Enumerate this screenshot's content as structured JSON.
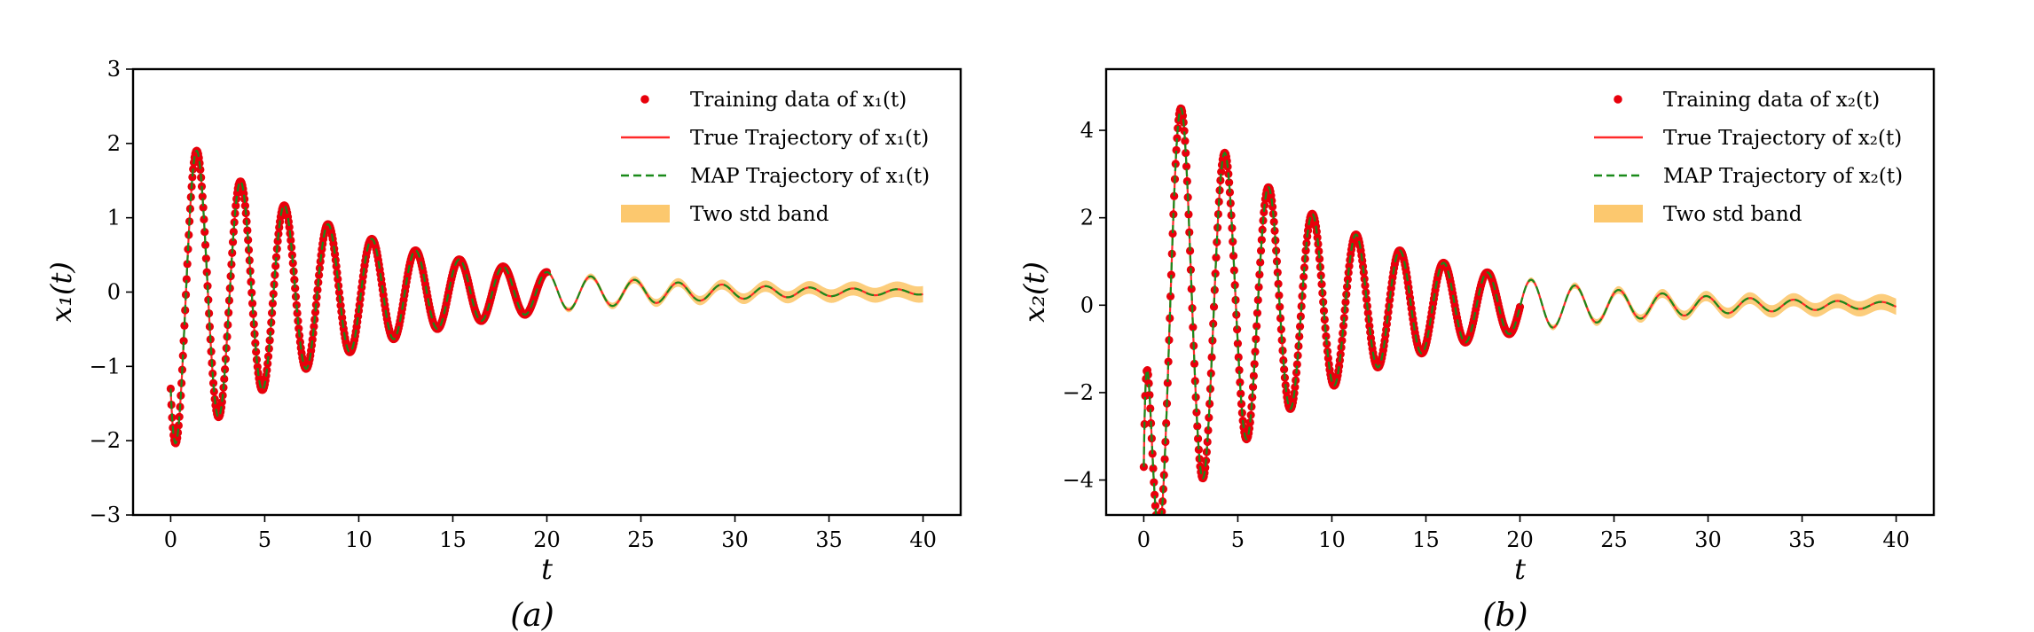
{
  "chart_data": [
    {
      "type": "line",
      "caption": "(a)",
      "xlabel": "t",
      "ylabel": "x₁(t)",
      "xlim": [
        -2,
        42
      ],
      "ylim": [
        -3,
        3
      ],
      "xticks": [
        0,
        5,
        10,
        15,
        20,
        25,
        30,
        35,
        40
      ],
      "yticks": [
        3,
        2,
        1,
        0,
        -1,
        -2,
        -3
      ],
      "ytick_labels": [
        "3",
        "2",
        "1",
        "0",
        "−1",
        "−2",
        "−3"
      ],
      "xtick_labels": [
        "0",
        "5",
        "10",
        "15",
        "20",
        "25",
        "30",
        "35",
        "40"
      ],
      "training_range": [
        0,
        20
      ],
      "signal": {
        "amplitude": 2.2,
        "decay": 0.105,
        "omega": 2.7,
        "phase": 2.2,
        "start": -1.3
      },
      "legend_position": "top-right",
      "legend": [
        "Training data of x₁(t)",
        "True Trajectory of x₁(t)",
        "MAP Trajectory of x₁(t)",
        "Two std band"
      ],
      "colors": {
        "training": "#e8000b",
        "true": "#ff2a2a",
        "map": "#1a8a1a",
        "band": "#fcc86e"
      },
      "peaks": [
        {
          "t": 1.7,
          "value": 1.68
        },
        {
          "t": 4.3,
          "value": 1.28
        },
        {
          "t": 6.6,
          "value": 1.0
        },
        {
          "t": 8.8,
          "value": 0.78
        },
        {
          "t": 11.0,
          "value": 0.62
        },
        {
          "t": 13.2,
          "value": 0.5
        },
        {
          "t": 15.4,
          "value": 0.4
        },
        {
          "t": 17.5,
          "value": 0.32
        },
        {
          "t": 19.7,
          "value": 0.26
        }
      ],
      "troughs": [
        {
          "t": 0.6,
          "value": -1.98
        },
        {
          "t": 3.1,
          "value": -1.42
        },
        {
          "t": 5.4,
          "value": -1.1
        },
        {
          "t": 7.6,
          "value": -0.88
        },
        {
          "t": 9.8,
          "value": -0.7
        },
        {
          "t": 12.0,
          "value": -0.56
        },
        {
          "t": 14.2,
          "value": -0.42
        },
        {
          "t": 16.4,
          "value": -0.34
        },
        {
          "t": 18.6,
          "value": -0.27
        }
      ]
    },
    {
      "type": "line",
      "caption": "(b)",
      "xlabel": "t",
      "ylabel": "x₂(t)",
      "xlim": [
        -2,
        42
      ],
      "ylim": [
        -4.8,
        5.4
      ],
      "xticks": [
        0,
        5,
        10,
        15,
        20,
        25,
        30,
        35,
        40
      ],
      "yticks": [
        4,
        2,
        0,
        -2,
        -4
      ],
      "ytick_labels": [
        "4",
        "2",
        "0",
        "−2",
        "−4"
      ],
      "xtick_labels": [
        "0",
        "5",
        "10",
        "15",
        "20",
        "25",
        "30",
        "35",
        "40"
      ],
      "training_range": [
        0,
        20
      ],
      "signal": {
        "amplitude": 5.6,
        "decay": 0.11,
        "omega": 2.7,
        "phase": 3.8,
        "start": -3.7
      },
      "legend_position": "top-right",
      "legend": [
        "Training data of x₂(t)",
        "True Trajectory of x₂(t)",
        "MAP Trajectory of x₂(t)",
        "Two std band"
      ],
      "colors": {
        "training": "#e8000b",
        "true": "#ff2a2a",
        "map": "#1a8a1a",
        "band": "#fcc86e"
      },
      "peaks": [
        {
          "t": 1.2,
          "value": 4.75
        },
        {
          "t": 3.6,
          "value": 3.75
        },
        {
          "t": 5.9,
          "value": 3.0
        },
        {
          "t": 8.2,
          "value": 2.4
        },
        {
          "t": 10.4,
          "value": 1.95
        },
        {
          "t": 12.6,
          "value": 1.55
        },
        {
          "t": 14.8,
          "value": 1.25
        },
        {
          "t": 16.9,
          "value": 1.0
        },
        {
          "t": 19.0,
          "value": 0.82
        }
      ],
      "troughs": [
        {
          "t": 0.0,
          "value": -3.7
        },
        {
          "t": 2.4,
          "value": -4.2
        },
        {
          "t": 4.8,
          "value": -3.3
        },
        {
          "t": 7.1,
          "value": -2.65
        },
        {
          "t": 9.3,
          "value": -2.1
        },
        {
          "t": 11.5,
          "value": -1.7
        },
        {
          "t": 13.7,
          "value": -1.38
        },
        {
          "t": 15.8,
          "value": -1.1
        },
        {
          "t": 18.0,
          "value": -0.9
        }
      ]
    }
  ]
}
